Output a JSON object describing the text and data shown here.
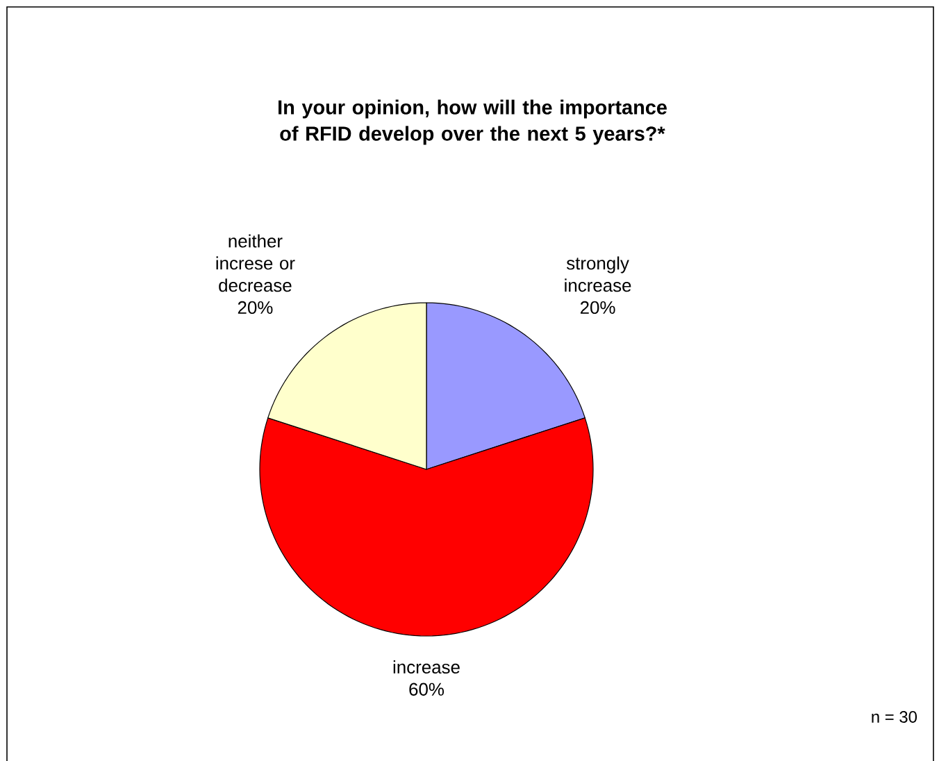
{
  "chart_data": {
    "type": "pie",
    "title": "In your opinion, how will the importance of RFID develop over the next 5 years?*",
    "categories": [
      "strongly increase",
      "increase",
      "neither increse or decrease"
    ],
    "values": [
      20,
      60,
      20
    ],
    "colors": [
      "#9999ff",
      "#ff0000",
      "#ffffcc"
    ],
    "value_labels": [
      "20%",
      "60%",
      "20%"
    ],
    "annotations": [
      "n = 30"
    ]
  }
}
